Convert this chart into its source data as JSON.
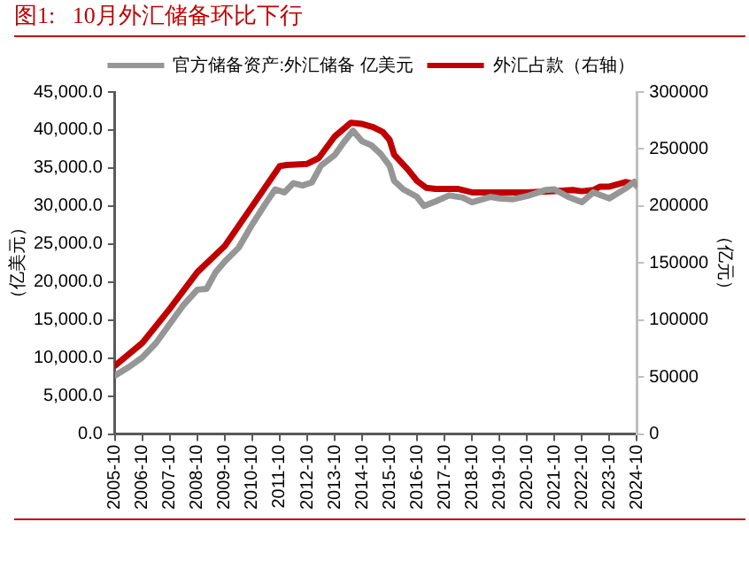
{
  "chart_data": {
    "type": "line",
    "title": "图1:   10月外汇储备环比下行",
    "ylabel": "（亿美元）",
    "y2label": "（亿元）",
    "xlim": [
      "2005-10",
      "2024-10"
    ],
    "xticks": [
      "2005-10",
      "2006-10",
      "2007-10",
      "2008-10",
      "2009-10",
      "2010-10",
      "2011-10",
      "2012-10",
      "2013-10",
      "2014-10",
      "2015-10",
      "2016-10",
      "2017-10",
      "2018-10",
      "2019-10",
      "2020-10",
      "2021-10",
      "2022-10",
      "2023-10",
      "2024-10"
    ],
    "ylim": [
      0,
      45000
    ],
    "yticks": [
      {
        "value": 0,
        "label": "0.0"
      },
      {
        "value": 5000,
        "label": "5,000.0"
      },
      {
        "value": 10000,
        "label": "10,000.0"
      },
      {
        "value": 15000,
        "label": "15,000.0"
      },
      {
        "value": 20000,
        "label": "20,000.0"
      },
      {
        "value": 25000,
        "label": "25,000.0"
      },
      {
        "value": 30000,
        "label": "30,000.0"
      },
      {
        "value": 35000,
        "label": "35,000.0"
      },
      {
        "value": 40000,
        "label": "40,000.0"
      },
      {
        "value": 45000,
        "label": "45,000.0"
      }
    ],
    "y2lim": [
      0,
      300000
    ],
    "y2ticks": [
      0,
      50000,
      100000,
      150000,
      200000,
      250000,
      300000
    ],
    "grid": false,
    "legend": "top",
    "marker": "none",
    "line_style": "solid",
    "series": [
      {
        "name": "官方储备资产:外汇储备 亿美元",
        "color": "#969696",
        "x": [
          "2005-10",
          "2006-04",
          "2006-10",
          "2007-04",
          "2007-10",
          "2008-04",
          "2008-10",
          "2009-02",
          "2009-06",
          "2009-10",
          "2010-04",
          "2010-10",
          "2011-04",
          "2011-08",
          "2011-12",
          "2012-04",
          "2012-08",
          "2012-12",
          "2013-04",
          "2013-10",
          "2014-02",
          "2014-06",
          "2014-10",
          "2015-02",
          "2015-06",
          "2015-10",
          "2015-12",
          "2016-04",
          "2016-10",
          "2017-01",
          "2017-06",
          "2017-12",
          "2018-06",
          "2018-10",
          "2019-06",
          "2019-10",
          "2020-04",
          "2020-10",
          "2021-06",
          "2021-10",
          "2022-04",
          "2022-10",
          "2023-03",
          "2023-10",
          "2024-05",
          "2024-09",
          "2024-10"
        ],
        "values": [
          7700,
          8800,
          10100,
          12000,
          14500,
          17000,
          19000,
          19100,
          21300,
          22700,
          24500,
          27600,
          30400,
          32200,
          31800,
          33000,
          32700,
          33100,
          35300,
          36700,
          38400,
          39900,
          38500,
          38000,
          36900,
          35300,
          33300,
          32200,
          31200,
          30000,
          30600,
          31400,
          31100,
          30500,
          31200,
          31000,
          30900,
          31300,
          32100,
          32200,
          31200,
          30500,
          31800,
          31000,
          32300,
          33200,
          32600
        ]
      },
      {
        "name": "外汇占款（右轴）",
        "color": "#c00000",
        "axis": "y2",
        "x": [
          "2005-10",
          "2006-10",
          "2007-10",
          "2008-10",
          "2009-10",
          "2010-10",
          "2011-10",
          "2012-01",
          "2012-10",
          "2013-03",
          "2013-10",
          "2014-05",
          "2014-10",
          "2015-03",
          "2015-07",
          "2015-10",
          "2015-12",
          "2016-06",
          "2016-10",
          "2017-02",
          "2017-06",
          "2017-10",
          "2018-04",
          "2018-10",
          "2019-10",
          "2020-10",
          "2021-10",
          "2022-06",
          "2022-10",
          "2023-03",
          "2023-06",
          "2023-10",
          "2024-05",
          "2024-10"
        ],
        "values": [
          60000,
          80000,
          110000,
          142000,
          165000,
          200000,
          235000,
          236000,
          237000,
          242000,
          261000,
          273000,
          272000,
          269000,
          265000,
          258000,
          245000,
          232000,
          222000,
          216000,
          215000,
          215000,
          215000,
          212000,
          212000,
          212000,
          213000,
          214000,
          213000,
          214000,
          217000,
          217000,
          221000,
          219000
        ]
      }
    ]
  }
}
